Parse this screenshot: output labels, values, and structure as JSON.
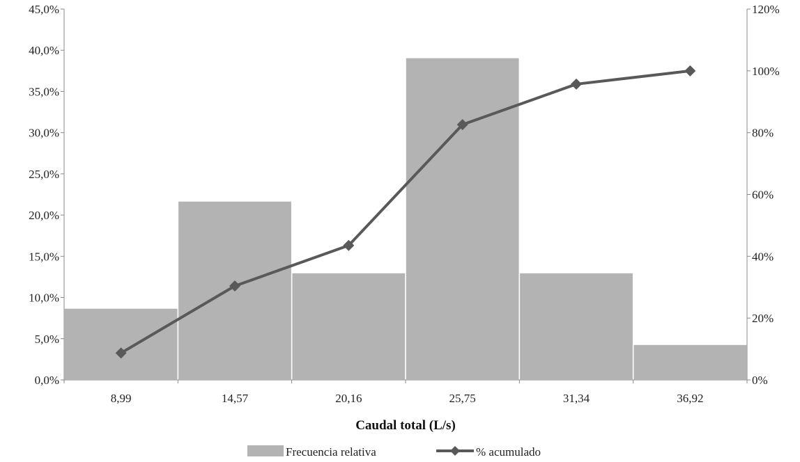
{
  "chart_data": {
    "type": "bar",
    "title": "",
    "xlabel": "Caudal  total  (L/s)",
    "categories": [
      "8,99",
      "14,57",
      "20,16",
      "25,75",
      "31,34",
      "36,92"
    ],
    "series": [
      {
        "name": "Frecuencia relativa",
        "type": "bar",
        "axis": "left",
        "values": [
          8.7,
          21.7,
          13.0,
          39.1,
          13.0,
          4.3
        ],
        "color": "#b3b3b3"
      },
      {
        "name": "% acumulado",
        "type": "line",
        "axis": "right",
        "marker": "diamond",
        "values": [
          8.7,
          30.4,
          43.5,
          82.6,
          95.7,
          100.0
        ],
        "color": "#595959"
      }
    ],
    "y_left": {
      "ylim": [
        0,
        45
      ],
      "ticks": [
        "0,0%",
        "5,0%",
        "10,0%",
        "15,0%",
        "20,0%",
        "25,0%",
        "30,0%",
        "35,0%",
        "40,0%",
        "45,0%"
      ]
    },
    "y_right": {
      "ylim": [
        0,
        120
      ],
      "ticks": [
        "0%",
        "20%",
        "40%",
        "60%",
        "80%",
        "100%",
        "120%"
      ]
    },
    "grid": false,
    "legend_position": "bottom"
  }
}
